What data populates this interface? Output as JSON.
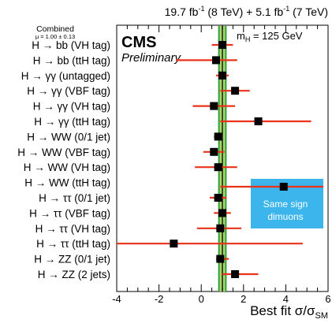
{
  "chart_data": {
    "type": "scatter",
    "lumi": {
      "base1": "19.7 fb",
      "sup1": "-1",
      "rest1": " (8 TeV) + ",
      "base2": "5.1 fb",
      "sup2": "-1",
      "rest2": " (7 TeV)"
    },
    "experiment": "CMS",
    "status": "Preliminary",
    "mass_label": {
      "sym": "m",
      "sub": "H",
      "rest": " = 125 GeV"
    },
    "combined": {
      "label": "Combined",
      "value_text": "μ = 1.00 ± 0.13",
      "mu": 1.0,
      "band_stat": 0.13,
      "band_total": 0.2
    },
    "xlabel": {
      "main": "Best fit σ/σ",
      "sub": "SM"
    },
    "xlim": [
      -4,
      6
    ],
    "xticks": [
      "-4",
      "-2",
      "0",
      "2",
      "4",
      "6"
    ],
    "categories": [
      "H → bb (VH tag)",
      "H → bb (ttH tag)",
      "H → γγ (untagged)",
      "H → γγ (VBF tag)",
      "H → γγ (VH tag)",
      "H → γγ (ttH tag)",
      "H → WW (0/1 jet)",
      "H → WW (VBF tag)",
      "H → WW (VH tag)",
      "H → WW (ttH tag)",
      "H → ττ (0/1 jet)",
      "H → ττ (VBF tag)",
      "H → ττ (VH tag)",
      "H → ττ (ttH tag)",
      "H → ZZ (0/1 jet)",
      "H → ZZ (2 jets)"
    ],
    "values": [
      1.0,
      0.7,
      1.0,
      1.6,
      0.6,
      2.7,
      0.8,
      0.6,
      0.8,
      null,
      0.8,
      1.0,
      0.9,
      -1.3,
      0.9,
      1.6
    ],
    "err_low": [
      0.5,
      1.9,
      0.3,
      0.7,
      1.0,
      1.8,
      0.2,
      0.5,
      1.1,
      null,
      0.4,
      0.4,
      1.1,
      2.7,
      0.2,
      0.6
    ],
    "err_high": [
      0.5,
      1.0,
      0.3,
      0.7,
      1.0,
      2.5,
      0.2,
      0.5,
      0.9,
      null,
      0.4,
      0.4,
      1.0,
      6.1,
      0.4,
      1.1
    ],
    "inset": {
      "value": 3.9,
      "err_low": 3.0,
      "err_high": 2.2,
      "text_line1": "Same sign",
      "text_line2": "dimuons"
    },
    "colors": {
      "err_bar": "#e8331a",
      "band_outer": "#2e9a3a",
      "band_inner": "#a6d86a",
      "combined_line": "#1a1a1a",
      "marker": "#000000",
      "inset_box": "#3cb4ec"
    }
  }
}
